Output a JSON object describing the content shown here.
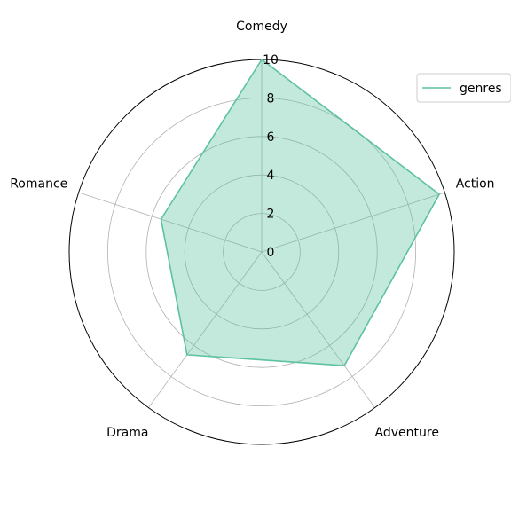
{
  "chart_data": {
    "type": "radar",
    "categories": [
      "Comedy",
      "Action",
      "Adventure",
      "Drama",
      "Romance"
    ],
    "series": [
      {
        "name": "genres",
        "values": [
          10,
          9.7,
          7.3,
          6.6,
          5.5
        ]
      }
    ],
    "rlim": [
      0,
      10
    ],
    "r_ticks": [
      "0",
      "2",
      "4",
      "6",
      "8",
      "10"
    ],
    "grid": true,
    "legend": "top-right",
    "colors": {
      "line": "#5cc29f",
      "fill": "#5cc29f",
      "grid": "#b0b0b0",
      "outline": "#000000"
    }
  }
}
